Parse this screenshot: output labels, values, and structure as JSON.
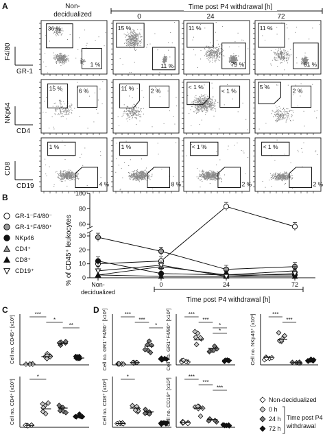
{
  "panels": {
    "A": "A",
    "B": "B",
    "C": "C",
    "D": "D"
  },
  "panel_a": {
    "header_left": [
      "Non-",
      "decidualized"
    ],
    "header_right": "Time post P4 withdrawal [h]",
    "timepoints": [
      "0",
      "24",
      "72"
    ],
    "row_axes": [
      {
        "y": "F4/80",
        "x": "GR-1"
      },
      {
        "y": "NKp64",
        "x": "CD4"
      },
      {
        "y": "CD8",
        "x": "CD19"
      }
    ],
    "gate_labels": [
      [
        "36 %",
        "1 %",
        "15 %",
        "11 %",
        "11 %",
        "79 %",
        "11 %",
        "61 %"
      ],
      [
        "15 %",
        "6 %",
        "11 %",
        "2 %",
        "< 1 %",
        "< 1 %",
        "5 %",
        "2 %"
      ],
      [
        "1 %",
        "4 %",
        "1 %",
        "8 %",
        "< 1 %",
        "2 %",
        "< 1 %",
        "2 %"
      ]
    ]
  },
  "chart_data": [
    {
      "type": "line",
      "panel": "B",
      "ylabel": "% of CD45⁺ leukocytes",
      "ylim": [
        0,
        100
      ],
      "yticks": [
        "0",
        "10",
        "20",
        "30",
        "60",
        "80",
        "100"
      ],
      "categories": [
        "Non-decidualized",
        "0",
        "24",
        "72"
      ],
      "x_group_label": "Time post P4 withdrawal [h]",
      "series": [
        {
          "name": "GR-1⁻F4/80⁻",
          "marker": "open-circle",
          "values": [
            10,
            12,
            83,
            57
          ]
        },
        {
          "name": "GR-1⁺F4/80⁺",
          "marker": "gray-circle",
          "values": [
            29,
            19,
            6,
            8
          ]
        },
        {
          "name": "NKp46",
          "marker": "black-circle",
          "values": [
            12,
            3,
            2,
            2
          ]
        },
        {
          "name": "CD4⁺",
          "marker": "gray-triangle",
          "values": [
            2,
            8,
            2,
            5
          ]
        },
        {
          "name": "CD8⁺",
          "marker": "black-triangle",
          "values": [
            2,
            1,
            1,
            1
          ]
        },
        {
          "name": "CD19⁺",
          "marker": "open-triangle-down",
          "values": [
            5,
            9,
            1,
            3
          ]
        }
      ]
    },
    {
      "type": "scatter",
      "panel": "C/D",
      "groups": [
        "Non-decidualized",
        "0 h",
        "24 h",
        "72 h"
      ],
      "subplots": [
        {
          "ylabel": "Cell no. CD45⁺ [x10³]",
          "means": [
            0.03,
            0.3,
            0.78,
            0.25
          ],
          "ymax": 1.4,
          "sig": [
            "***",
            "*",
            "**"
          ]
        },
        {
          "ylabel": "Cell no. CD4⁺ [x10³]",
          "means": [
            0.05,
            0.48,
            0.5,
            0.28
          ],
          "ymax": 1.0,
          "sig": [
            "*"
          ]
        },
        {
          "ylabel": "Cell no. GR1⁻F4/80⁻ [x10³]",
          "means": [
            0.03,
            0.08,
            0.68,
            0.2
          ],
          "ymax": 1.4,
          "sig": [
            "***",
            "***",
            "*"
          ]
        },
        {
          "ylabel": "Cell no. GR1⁺F4/80⁺ [x10³]",
          "means": [
            0.1,
            0.65,
            0.43,
            0.12
          ],
          "ymax": 1.0,
          "sig": [
            "***",
            "***",
            "*",
            "*"
          ]
        },
        {
          "ylabel": "Cell no. NKp46⁺ [x10³]",
          "means": [
            0.35,
            1.2,
            0.1,
            0.2
          ],
          "ymax": 1.8,
          "sig": [
            "***",
            "***"
          ]
        },
        {
          "ylabel": "Cell no. CD8⁺ [x10³]",
          "means": [
            0.05,
            0.25,
            0.2,
            0.05
          ],
          "ymax": 0.5,
          "sig": [
            "*"
          ]
        },
        {
          "ylabel": "Cell no. CD19⁺ [x10³]",
          "means": [
            0.05,
            0.2,
            0.08,
            0.02
          ],
          "ymax": 0.4,
          "sig": [
            "***",
            "***",
            "***"
          ]
        }
      ]
    }
  ],
  "legend_cd": {
    "items": [
      "Non-decidualized",
      "0 h",
      "24 h",
      "72 h"
    ],
    "group_label": [
      "Time post P4",
      "withdrawal"
    ]
  }
}
